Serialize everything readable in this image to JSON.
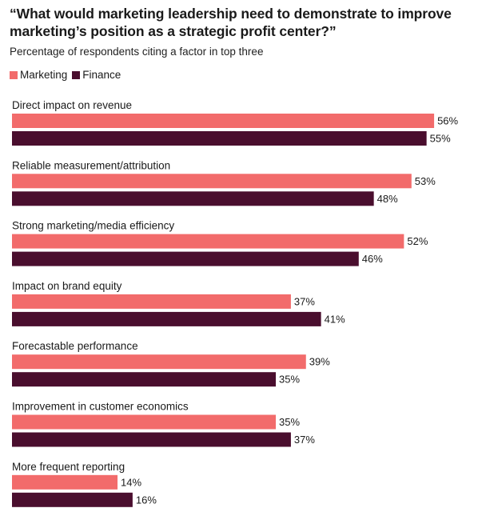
{
  "header": {
    "title": "“What would marketing leadership need to demonstrate to improve marketing’s position as a strategic profit center?”",
    "subtitle": "Percentage of respondents citing a factor in top three"
  },
  "legend": [
    {
      "name": "Marketing",
      "color": "#f26b6b"
    },
    {
      "name": "Finance",
      "color": "#4a0e2e"
    }
  ],
  "chart_data": {
    "type": "bar",
    "orientation": "horizontal",
    "categories": [
      "Direct impact on revenue",
      "Reliable measurement/attribution",
      "Strong marketing/media efficiency",
      "Impact on brand equity",
      "Forecastable performance",
      "Improvement in customer economics",
      "More frequent reporting"
    ],
    "series": [
      {
        "name": "Marketing",
        "color": "#f26b6b",
        "values": [
          56,
          53,
          52,
          37,
          39,
          35,
          14
        ]
      },
      {
        "name": "Finance",
        "color": "#4a0e2e",
        "values": [
          55,
          48,
          46,
          41,
          35,
          37,
          16
        ]
      }
    ],
    "value_suffix": "%",
    "legend_position": "top-left",
    "grid": false
  }
}
